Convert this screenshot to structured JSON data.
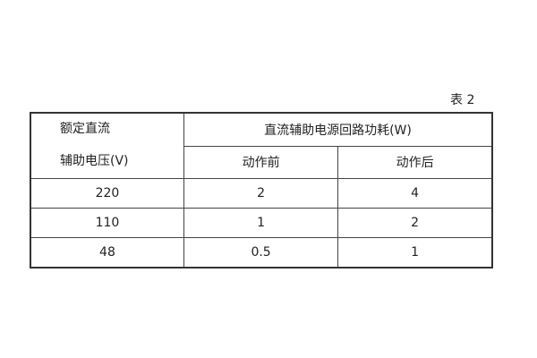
{
  "caption": "表 2",
  "header": {
    "voltage_line1": "额定直流",
    "voltage_line2": "辅助电压(V)",
    "power": "直流辅助电源回路功耗(W)",
    "before": "动作前",
    "after": "动作后"
  },
  "rows": [
    {
      "voltage": "220",
      "before": "2",
      "after": "4"
    },
    {
      "voltage": "110",
      "before": "1",
      "after": "2"
    },
    {
      "voltage": "48",
      "before": "0.5",
      "after": "1"
    }
  ]
}
